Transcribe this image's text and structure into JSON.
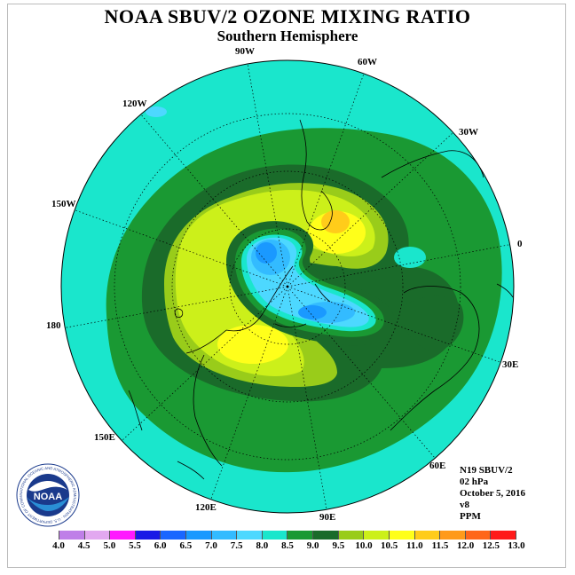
{
  "header": {
    "title": "NOAA SBUV/2 OZONE MIXING RATIO",
    "subtitle": "Southern Hemisphere"
  },
  "map": {
    "projection": "polar stereographic",
    "hemisphere": "south",
    "longitude_labels": [
      "90W",
      "60W",
      "30W",
      "0",
      "30E",
      "60E",
      "90E",
      "120E",
      "150E",
      "180",
      "150W",
      "120W"
    ]
  },
  "info": {
    "satellite": "N19 SBUV/2",
    "level": "02 hPa",
    "date": "October 5, 2016",
    "version": "v8",
    "units": "PPM"
  },
  "colorbar": {
    "labels": [
      "4.0",
      "4.5",
      "5.0",
      "5.5",
      "6.0",
      "6.5",
      "7.0",
      "7.5",
      "8.0",
      "8.5",
      "9.0",
      "9.5",
      "10.0",
      "10.5",
      "11.0",
      "11.5",
      "12.0",
      "12.5",
      "13.0"
    ],
    "colors": [
      "#bf7fe8",
      "#e2a8f0",
      "#ff1aff",
      "#1a1ae6",
      "#1a66ff",
      "#1a99ff",
      "#33bbff",
      "#4dd8ff",
      "#1ae6cc",
      "#1a9933",
      "#1a6b2a",
      "#99cc1a",
      "#ccf01a",
      "#ffff1a",
      "#ffcc1a",
      "#ff9a1a",
      "#ff661a",
      "#ff1a1a",
      "#8c5a3a"
    ]
  },
  "logo": {
    "text": "NOAA",
    "ring_text": "NATIONAL OCEANIC AND ATMOSPHERIC ADMINISTRATION · U.S. DEPARTMENT OF COMMERCE"
  }
}
